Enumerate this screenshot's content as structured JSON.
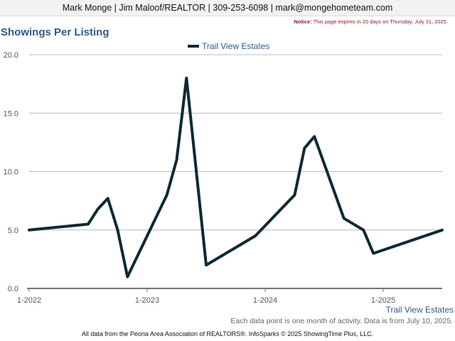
{
  "header": {
    "contact": "Mark Monge | Jim Maloof/REALTOR | 309-253-6098 | mark@mongehometeam.com"
  },
  "notice": {
    "label": "Notice:",
    "text": "This page expires in 20 days on Thursday, July 31, 2025."
  },
  "footer": {
    "note": "Each data point is one month of activity. Data is from July 10, 2025.",
    "source": "All data from the Peoria Area Association of REALTORS®. InfoSparks © 2025 ShowingTime Plus, LLC."
  },
  "colors": {
    "line": "#0f2a33",
    "title": "#2f5a85",
    "grid": "#bbbbbb",
    "axis_label": "#555555",
    "series_label": "#2f5a85"
  },
  "chart_data": {
    "type": "line",
    "title": "Showings Per Listing",
    "xlabel": "",
    "ylabel": "",
    "ylim": [
      0,
      20
    ],
    "y_ticks": [
      0,
      5,
      10,
      15,
      20
    ],
    "y_tick_labels": [
      "0.0",
      "5.0",
      "10.0",
      "15.0",
      "20.0"
    ],
    "x_range": [
      "2022-01",
      "2025-07"
    ],
    "x_ticks": [
      "2022-01",
      "2023-01",
      "2024-01",
      "2025-01"
    ],
    "x_tick_labels": [
      "1-2022",
      "1-2023",
      "1-2024",
      "1-2025"
    ],
    "grid": true,
    "legend": "top-center",
    "series": [
      {
        "name": "Trail View Estates",
        "color": "#0f2a33",
        "points": [
          {
            "x": "2022-01",
            "y": 5.0
          },
          {
            "x": "2022-07",
            "y": 5.5
          },
          {
            "x": "2022-08",
            "y": 6.8
          },
          {
            "x": "2022-09",
            "y": 7.7
          },
          {
            "x": "2022-10",
            "y": 5.0
          },
          {
            "x": "2022-11",
            "y": 1.0
          },
          {
            "x": "2023-03",
            "y": 8.0
          },
          {
            "x": "2023-04",
            "y": 11.0
          },
          {
            "x": "2023-05",
            "y": 18.0
          },
          {
            "x": "2023-07",
            "y": 2.0
          },
          {
            "x": "2023-12",
            "y": 4.5
          },
          {
            "x": "2024-04",
            "y": 8.0
          },
          {
            "x": "2024-05",
            "y": 12.0
          },
          {
            "x": "2024-06",
            "y": 13.0
          },
          {
            "x": "2024-09",
            "y": 6.0
          },
          {
            "x": "2024-11",
            "y": 5.0
          },
          {
            "x": "2024-12",
            "y": 3.0
          },
          {
            "x": "2025-07",
            "y": 5.0
          }
        ]
      }
    ],
    "series_end_label": "Trail View Estates"
  }
}
